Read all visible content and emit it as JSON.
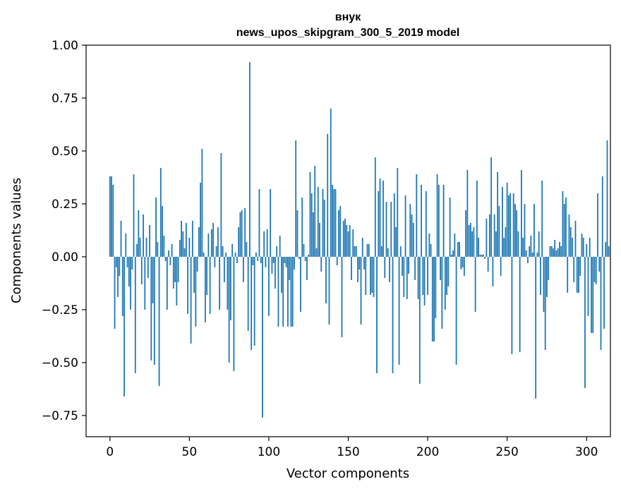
{
  "chart_data": {
    "type": "bar",
    "title": "внук",
    "subtitle": "news_upos_skipgram_300_5_2019 model",
    "xlabel": "Vector components",
    "ylabel": "Components values",
    "xlim": [
      -15,
      315
    ],
    "ylim": [
      -0.85,
      1.0
    ],
    "xticks": [
      0,
      50,
      100,
      150,
      200,
      250,
      300
    ],
    "yticks": [
      -0.75,
      -0.5,
      -0.25,
      0.0,
      0.25,
      0.5,
      0.75,
      1.0
    ],
    "xtick_labels": [
      "0",
      "50",
      "100",
      "150",
      "200",
      "250",
      "300"
    ],
    "ytick_labels": [
      "−0.75",
      "−0.50",
      "−0.25",
      "0.00",
      "0.25",
      "0.50",
      "0.75",
      "1.00"
    ],
    "bar_color": "#1f77b4",
    "values": [
      0.38,
      0.38,
      0.34,
      -0.34,
      -0.05,
      -0.19,
      -0.09,
      0.17,
      -0.28,
      -0.66,
      0.11,
      -0.05,
      -0.14,
      -0.25,
      -0.06,
      0.39,
      -0.55,
      0.06,
      0.22,
      0.09,
      -0.13,
      0.2,
      -0.25,
      0.09,
      -0.1,
      0.15,
      -0.49,
      -0.22,
      -0.51,
      0.28,
      0.07,
      -0.61,
      0.42,
      0.24,
      0.1,
      -0.02,
      -0.25,
      0.03,
      -0.04,
      0.06,
      -0.15,
      -0.12,
      -0.23,
      -0.12,
      0.08,
      0.17,
      0.12,
      0.04,
      0.16,
      -0.27,
      0.09,
      -0.41,
      0.17,
      -0.17,
      -0.33,
      -0.07,
      0.14,
      0.35,
      0.51,
      0.02,
      -0.31,
      -0.18,
      0.11,
      -0.27,
      0.13,
      0.16,
      -0.05,
      0.05,
      0.14,
      -0.25,
      0.49,
      0.05,
      -0.12,
      0.02,
      -0.25,
      -0.5,
      -0.3,
      0.06,
      -0.54,
      0.02,
      -0.03,
      0.14,
      0.21,
      0.22,
      -0.12,
      0.23,
      0.07,
      -0.35,
      0.92,
      -0.44,
      -0.04,
      -0.42,
      0.02,
      -0.02,
      0.32,
      -0.03,
      -0.76,
      0.12,
      -0.05,
      0.13,
      -0.28,
      0.32,
      -0.08,
      -0.03,
      -0.15,
      0.05,
      -0.33,
      0.1,
      -0.17,
      -0.33,
      -0.03,
      -0.05,
      -0.33,
      -0.11,
      -0.33,
      -0.33,
      -0.06,
      0.55,
      0.22,
      -0.01,
      -0.26,
      0.28,
      0.06,
      -0.02,
      -0.11,
      0.01,
      0.4,
      0.3,
      0.21,
      0.43,
      0.04,
      0.33,
      0.16,
      -0.07,
      0.32,
      0.27,
      -0.22,
      0.58,
      -0.32,
      0.7,
      0.34,
      0.32,
      0.32,
      -0.04,
      0.22,
      0.24,
      -0.38,
      0.17,
      0.18,
      0.15,
      0.12,
      0.15,
      -0.11,
      0.13,
      0.05,
      0.05,
      -0.12,
      -0.06,
      -0.32,
      0.09,
      -0.06,
      -0.18,
      0.06,
      0.06,
      -0.18,
      -0.17,
      -0.19,
      0.47,
      -0.55,
      0.31,
      0.37,
      0.05,
      0.36,
      -0.1,
      0.26,
      0.04,
      -0.12,
      0.26,
      -0.55,
      0.3,
      0.14,
      0.42,
      -0.51,
      0.05,
      -0.09,
      -0.19,
      0.29,
      -0.2,
      -0.08,
      0.25,
      0.2,
      0.16,
      -0.11,
      0.39,
      -0.2,
      -0.6,
      0.34,
      -0.18,
      -0.23,
      0.31,
      -0.18,
      0.11,
      0.06,
      -0.4,
      -0.4,
      -0.29,
      0.39,
      0.34,
      -0.11,
      -0.34,
      0.34,
      -0.25,
      -0.18,
      -0.14,
      0.28,
      0.01,
      0.03,
      0.11,
      -0.51,
      0.07,
      0.07,
      -0.06,
      -0.05,
      -0.09,
      0.22,
      0.41,
      0.15,
      0.16,
      0.12,
      0.14,
      -0.26,
      0.36,
      0.09,
      0.01,
      0.01,
      0.01,
      -0.01,
      0.18,
      -0.07,
      0.2,
      0.47,
      -0.14,
      0.2,
      0.12,
      0.4,
      0.24,
      -0.09,
      0.33,
      0.09,
      0.14,
      0.35,
      0.29,
      0.3,
      -0.46,
      0.3,
      0.25,
      0.22,
      0.12,
      -0.45,
      0.41,
      0.09,
      0.25,
      0.03,
      -0.03,
      0.05,
      0.1,
      0.02,
      0.25,
      -0.67,
      0.02,
      0.12,
      -0.18,
      0.36,
      -0.26,
      -0.44,
      -0.19,
      -0.11,
      0.05,
      0.05,
      0.04,
      0.08,
      0.03,
      0.04,
      0.07,
      0.05,
      0.31,
      0.25,
      0.28,
      -0.17,
      0.2,
      0.14,
      0.09,
      -0.12,
      0.17,
      -0.17,
      -0.17,
      -0.09,
      0.11,
      0.09,
      -0.62,
      0.06,
      -0.28,
      0.09,
      -0.36,
      -0.36,
      -0.12,
      -0.13,
      0.3,
      -0.07,
      -0.44,
      0.38,
      -0.34,
      0.07,
      0.55,
      0.05
    ]
  }
}
